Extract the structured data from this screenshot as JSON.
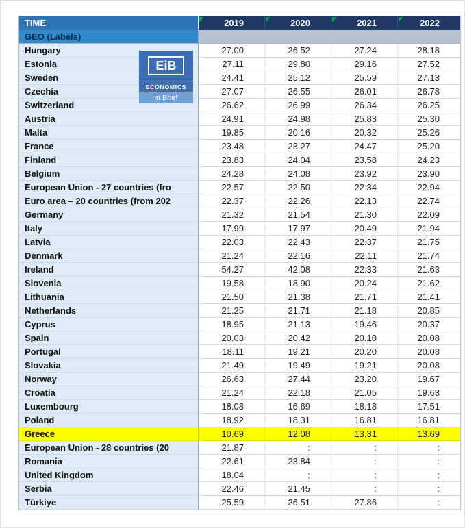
{
  "header": {
    "time_label": "TIME",
    "geo_label": "GEO (Labels)",
    "years": [
      "2019",
      "2020",
      "2021",
      "2022"
    ]
  },
  "logo": {
    "title": "EiB",
    "subtitle": "ECONOMICS",
    "tagline": "in Brief"
  },
  "colors": {
    "time_header_blue": "#2E75B6",
    "year_header_navy": "#1F3864",
    "geo_row_blue": "#3289CC",
    "country_cell_blue": "#DEEAF6",
    "highlight_yellow": "#FFFF00",
    "filter_flag_green": "#00A651",
    "logo_blue": "#3C6CB4"
  },
  "table": {
    "missing_symbol": ":",
    "rows": [
      {
        "name": "Hungary",
        "values": [
          "27.00",
          "26.52",
          "27.24",
          "28.18"
        ],
        "highlight": false
      },
      {
        "name": "Estonia",
        "values": [
          "27.11",
          "29.80",
          "29.16",
          "27.52"
        ],
        "highlight": false
      },
      {
        "name": "Sweden",
        "values": [
          "24.41",
          "25.12",
          "25.59",
          "27.13"
        ],
        "highlight": false
      },
      {
        "name": "Czechia",
        "values": [
          "27.07",
          "26.55",
          "26.01",
          "26.78"
        ],
        "highlight": false
      },
      {
        "name": "Switzerland",
        "values": [
          "26.62",
          "26.99",
          "26.34",
          "26.25"
        ],
        "highlight": false
      },
      {
        "name": "Austria",
        "values": [
          "24.91",
          "24.98",
          "25.83",
          "25.30"
        ],
        "highlight": false
      },
      {
        "name": "Malta",
        "values": [
          "19.85",
          "20.16",
          "20.32",
          "25.26"
        ],
        "highlight": false
      },
      {
        "name": "France",
        "values": [
          "23.48",
          "23.27",
          "24.47",
          "25.20"
        ],
        "highlight": false
      },
      {
        "name": "Finland",
        "values": [
          "23.83",
          "24.04",
          "23.58",
          "24.23"
        ],
        "highlight": false
      },
      {
        "name": "Belgium",
        "values": [
          "24.28",
          "24.08",
          "23.92",
          "23.90"
        ],
        "highlight": false
      },
      {
        "name": "European Union - 27 countries (fro",
        "values": [
          "22.57",
          "22.50",
          "22.34",
          "22.94"
        ],
        "highlight": false
      },
      {
        "name": "Euro area – 20 countries (from 202",
        "values": [
          "22.37",
          "22.26",
          "22.13",
          "22.74"
        ],
        "highlight": false
      },
      {
        "name": "Germany",
        "values": [
          "21.32",
          "21.54",
          "21.30",
          "22.09"
        ],
        "highlight": false
      },
      {
        "name": "Italy",
        "values": [
          "17.99",
          "17.97",
          "20.49",
          "21.94"
        ],
        "highlight": false
      },
      {
        "name": "Latvia",
        "values": [
          "22.03",
          "22.43",
          "22.37",
          "21.75"
        ],
        "highlight": false
      },
      {
        "name": "Denmark",
        "values": [
          "21.24",
          "22.16",
          "22.11",
          "21.74"
        ],
        "highlight": false
      },
      {
        "name": "Ireland",
        "values": [
          "54.27",
          "42.08",
          "22.33",
          "21.63"
        ],
        "highlight": false
      },
      {
        "name": "Slovenia",
        "values": [
          "19.58",
          "18.90",
          "20.24",
          "21.62"
        ],
        "highlight": false
      },
      {
        "name": "Lithuania",
        "values": [
          "21.50",
          "21.38",
          "21.71",
          "21.41"
        ],
        "highlight": false
      },
      {
        "name": "Netherlands",
        "values": [
          "21.25",
          "21.71",
          "21.18",
          "20.85"
        ],
        "highlight": false
      },
      {
        "name": "Cyprus",
        "values": [
          "18.95",
          "21.13",
          "19.46",
          "20.37"
        ],
        "highlight": false
      },
      {
        "name": "Spain",
        "values": [
          "20.03",
          "20.42",
          "20.10",
          "20.08"
        ],
        "highlight": false
      },
      {
        "name": "Portugal",
        "values": [
          "18.11",
          "19.21",
          "20.20",
          "20.08"
        ],
        "highlight": false
      },
      {
        "name": "Slovakia",
        "values": [
          "21.49",
          "19.49",
          "19.21",
          "20.08"
        ],
        "highlight": false
      },
      {
        "name": "Norway",
        "values": [
          "26.63",
          "27.44",
          "23.20",
          "19.67"
        ],
        "highlight": false
      },
      {
        "name": "Croatia",
        "values": [
          "21.24",
          "22.18",
          "21.05",
          "19.63"
        ],
        "highlight": false
      },
      {
        "name": "Luxembourg",
        "values": [
          "18.08",
          "16.69",
          "18.18",
          "17.51"
        ],
        "highlight": false
      },
      {
        "name": "Poland",
        "values": [
          "18.92",
          "18.31",
          "16.81",
          "16.81"
        ],
        "highlight": false
      },
      {
        "name": "Greece",
        "values": [
          "10.69",
          "12.08",
          "13.31",
          "13.69"
        ],
        "highlight": true
      },
      {
        "name": "European Union - 28 countries (20",
        "values": [
          "21.87",
          ":",
          ":",
          ":"
        ],
        "highlight": false
      },
      {
        "name": "Romania",
        "values": [
          "22.61",
          "23.84",
          ":",
          ":"
        ],
        "highlight": false
      },
      {
        "name": "United Kingdom",
        "values": [
          "18.04",
          ":",
          ":",
          ":"
        ],
        "highlight": false
      },
      {
        "name": "Serbia",
        "values": [
          "22.46",
          "21.45",
          ":",
          ":"
        ],
        "highlight": false
      },
      {
        "name": "Türkiye",
        "values": [
          "25.59",
          "26.51",
          "27.86",
          ":"
        ],
        "highlight": false
      }
    ]
  }
}
